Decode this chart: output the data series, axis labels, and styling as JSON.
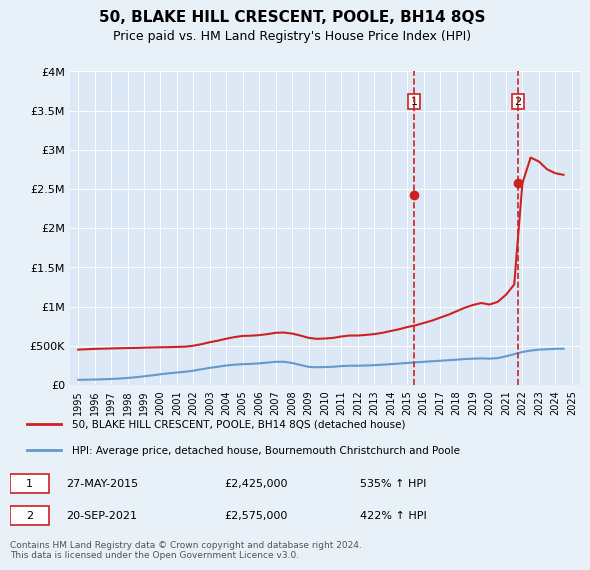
{
  "title": "50, BLAKE HILL CRESCENT, POOLE, BH14 8QS",
  "subtitle": "Price paid vs. HM Land Registry's House Price Index (HPI)",
  "background_color": "#e8f0f8",
  "plot_bg_color": "#dce8f5",
  "legend_line1": "50, BLAKE HILL CRESCENT, POOLE, BH14 8QS (detached house)",
  "legend_line2": "HPI: Average price, detached house, Bournemouth Christchurch and Poole",
  "footer": "Contains HM Land Registry data © Crown copyright and database right 2024.\nThis data is licensed under the Open Government Licence v3.0.",
  "annotation1": {
    "label": "1",
    "date": "27-MAY-2015",
    "price": "£2,425,000",
    "hpi": "535% ↑ HPI",
    "x": 2015.4
  },
  "annotation2": {
    "label": "2",
    "date": "20-SEP-2021",
    "price": "£2,575,000",
    "hpi": "422% ↑ HPI",
    "x": 2021.72
  },
  "hpi_color": "#6699cc",
  "price_color": "#cc2222",
  "marker_color": "#cc2222",
  "dashed_color": "#cc2222",
  "ylim": [
    0,
    4000000
  ],
  "yticks": [
    0,
    500000,
    1000000,
    1500000,
    2000000,
    2500000,
    3000000,
    3500000,
    4000000
  ],
  "ytick_labels": [
    "£0",
    "£500K",
    "£1M",
    "£1.5M",
    "£2M",
    "£2.5M",
    "£3M",
    "£3.5M",
    "£4M"
  ],
  "xlim_start": 1994.5,
  "xlim_end": 2025.5,
  "xticks": [
    1995,
    1996,
    1997,
    1998,
    1999,
    2000,
    2001,
    2002,
    2003,
    2004,
    2005,
    2006,
    2007,
    2008,
    2009,
    2010,
    2011,
    2012,
    2013,
    2014,
    2015,
    2016,
    2017,
    2018,
    2019,
    2020,
    2021,
    2022,
    2023,
    2024,
    2025
  ],
  "hpi_x": [
    1995,
    1995.5,
    1996,
    1996.5,
    1997,
    1997.5,
    1998,
    1998.5,
    1999,
    1999.5,
    2000,
    2000.5,
    2001,
    2001.5,
    2002,
    2002.5,
    2003,
    2003.5,
    2004,
    2004.5,
    2005,
    2005.5,
    2006,
    2006.5,
    2007,
    2007.5,
    2008,
    2008.5,
    2009,
    2009.5,
    2010,
    2010.5,
    2011,
    2011.5,
    2012,
    2012.5,
    2013,
    2013.5,
    2014,
    2014.5,
    2015,
    2015.5,
    2016,
    2016.5,
    2017,
    2017.5,
    2018,
    2018.5,
    2019,
    2019.5,
    2020,
    2020.5,
    2021,
    2021.5,
    2022,
    2022.5,
    2023,
    2023.5,
    2024,
    2024.5
  ],
  "hpi_y": [
    65000,
    67000,
    69000,
    72000,
    76000,
    81000,
    89000,
    98000,
    110000,
    122000,
    136000,
    148000,
    158000,
    168000,
    182000,
    200000,
    218000,
    232000,
    248000,
    258000,
    265000,
    268000,
    275000,
    285000,
    295000,
    295000,
    280000,
    255000,
    230000,
    225000,
    228000,
    232000,
    240000,
    245000,
    245000,
    248000,
    252000,
    258000,
    265000,
    272000,
    280000,
    288000,
    295000,
    302000,
    308000,
    315000,
    322000,
    330000,
    335000,
    338000,
    335000,
    342000,
    365000,
    392000,
    420000,
    438000,
    450000,
    455000,
    460000,
    462000
  ],
  "price_x": [
    1995,
    1995.5,
    1996,
    1996.5,
    1997,
    1997.5,
    1998,
    1998.5,
    1999,
    1999.5,
    2000,
    2000.5,
    2001,
    2001.5,
    2002,
    2002.5,
    2003,
    2003.5,
    2004,
    2004.5,
    2005,
    2005.5,
    2006,
    2006.5,
    2007,
    2007.5,
    2008,
    2008.5,
    2009,
    2009.5,
    2010,
    2010.5,
    2011,
    2011.5,
    2012,
    2012.5,
    2013,
    2013.5,
    2014,
    2014.5,
    2015,
    2015.5,
    2016,
    2016.5,
    2017,
    2017.5,
    2018,
    2018.5,
    2019,
    2019.5,
    2020,
    2020.5,
    2021,
    2021.5,
    2022,
    2022.5,
    2023,
    2023.5,
    2024,
    2024.5
  ],
  "price_y": [
    450000,
    455000,
    460000,
    462000,
    465000,
    468000,
    470000,
    472000,
    475000,
    478000,
    480000,
    482000,
    485000,
    488000,
    500000,
    520000,
    545000,
    565000,
    590000,
    610000,
    625000,
    628000,
    635000,
    648000,
    665000,
    668000,
    655000,
    630000,
    600000,
    588000,
    592000,
    600000,
    618000,
    630000,
    630000,
    638000,
    648000,
    665000,
    688000,
    710000,
    738000,
    760000,
    790000,
    820000,
    858000,
    895000,
    940000,
    985000,
    1020000,
    1045000,
    1025000,
    1060000,
    1150000,
    1280000,
    2575000,
    2900000,
    2850000,
    2750000,
    2700000,
    2680000
  ]
}
